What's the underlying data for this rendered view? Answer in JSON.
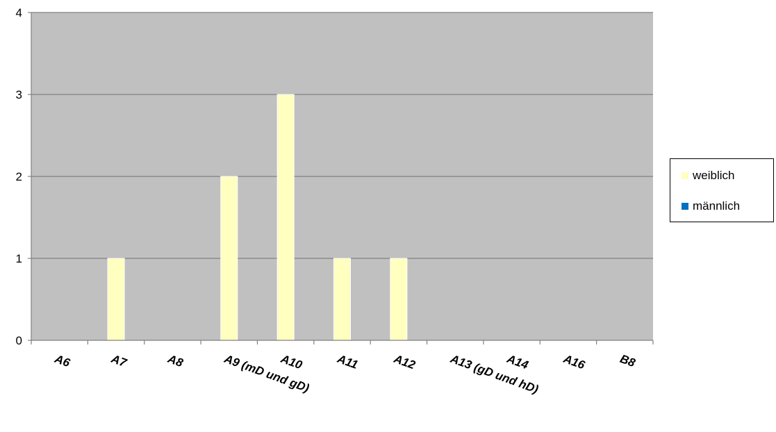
{
  "chart_data": {
    "type": "bar",
    "categories": [
      "A6",
      "A7",
      "A8",
      "A9 (mD und gD)",
      "A10",
      "A11",
      "A12",
      "A13 (gD und hD)",
      "A14",
      "A16",
      "B8"
    ],
    "series": [
      {
        "name": "weiblich",
        "color": "#ffffc0",
        "values": [
          0,
          1,
          0,
          2,
          3,
          1,
          1,
          0,
          0,
          0,
          0
        ]
      },
      {
        "name": "männlich",
        "color": "#0070c0",
        "values": [
          0,
          0,
          0,
          0,
          0,
          0,
          0,
          0,
          0,
          0,
          0
        ]
      }
    ],
    "ylim": [
      0,
      4
    ],
    "yticks": [
      "0",
      "1",
      "2",
      "3",
      "4"
    ],
    "grid": true,
    "plot_background": "#c0c0c0",
    "gridline_color": "#808080",
    "legend_position": "right",
    "title": "",
    "xlabel": "",
    "ylabel": ""
  }
}
